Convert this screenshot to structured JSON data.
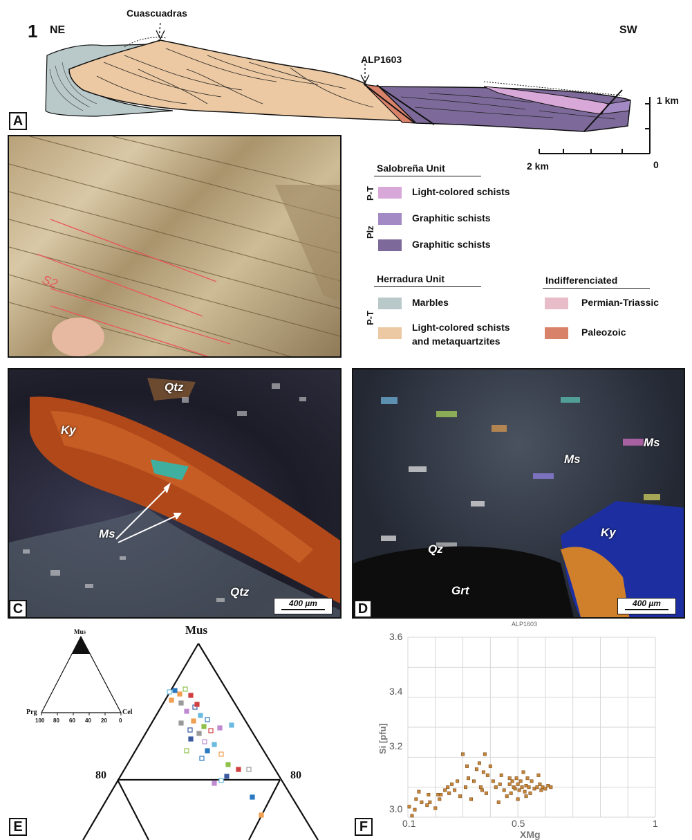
{
  "figure_number": "1",
  "panel_labels": {
    "a": "A",
    "c": "C",
    "d": "D",
    "e": "E",
    "f": "F"
  },
  "cross_section": {
    "left_direction": "NE",
    "right_direction": "SW",
    "peak_label": "Cuascuadras",
    "sample_label": "ALP1603",
    "vertical_scale_label": "1 km",
    "horizontal_scale_label": "2 km",
    "scale_zero": "0",
    "colors": {
      "marbles": "#b9c9c9",
      "herradura_schists": "#ecc9a2",
      "paleozoic": "#d9826a",
      "graphitic_plz": "#7d6a9b",
      "graphitic_pt": "#a38ac4",
      "light_salobrena": "#d8a8d8"
    }
  },
  "legend": {
    "salobrena": {
      "title": "Salobreña Unit",
      "items": [
        {
          "age": "P-T",
          "label": "Light-colored schists",
          "color": "#d8a8d8"
        },
        {
          "age": "Plz",
          "label": "Graphitic schists",
          "color": "#a38ac4"
        },
        {
          "age": "",
          "label": "Graphitic schists",
          "color": "#7d6a9b"
        }
      ]
    },
    "herradura": {
      "title": "Herradura Unit",
      "age": "P-T",
      "items": [
        {
          "label": "Marbles",
          "color": "#b9c9c9"
        },
        {
          "label_line1": "Light-colored schists",
          "label_line2": "and metaquartzites",
          "color": "#ecc9a2"
        }
      ]
    },
    "indiff": {
      "title": "Indifferenciated",
      "items": [
        {
          "label": "Permian-Triassic",
          "color": "#e8bcc9"
        },
        {
          "label": "Paleozoic",
          "color": "#d9826a"
        }
      ]
    }
  },
  "photo_b": {
    "annotation": "S2"
  },
  "micro_c": {
    "labels": [
      "Qtz",
      "Ky",
      "Ms",
      "Qtz"
    ],
    "scale": "400 µm"
  },
  "micro_d": {
    "labels": [
      "Ms",
      "Ms",
      "Ky",
      "Qz",
      "Grt"
    ],
    "scale": "400 µm"
  },
  "ternary": {
    "apex": "Mus",
    "inset_apex": "Mus",
    "inset_left": "Prg",
    "inset_right": "Cel",
    "inset_ticks": [
      "100",
      "80",
      "60",
      "40",
      "20",
      "0"
    ],
    "left_80": "80",
    "right_80": "80"
  },
  "chart_data": {
    "type": "scatter",
    "title": "ALP1603",
    "xlabel": "XMg",
    "ylabel": "Si [pfu]",
    "x_scale": "log",
    "xlim": [
      0.1,
      1
    ],
    "ylim": [
      3.0,
      3.6
    ],
    "x_tick_labels": [
      "0.1",
      "0.5",
      "1"
    ],
    "y_tick_labels": [
      "3.0",
      "3.2",
      "3.4",
      "3.6"
    ],
    "grid": true,
    "marker_color": "#c8873a",
    "points": [
      [
        0.105,
        3.035
      ],
      [
        0.115,
        3.005
      ],
      [
        0.125,
        3.025
      ],
      [
        0.13,
        3.06
      ],
      [
        0.14,
        3.085
      ],
      [
        0.15,
        3.05
      ],
      [
        0.17,
        3.04
      ],
      [
        0.175,
        3.075
      ],
      [
        0.18,
        3.05
      ],
      [
        0.2,
        3.03
      ],
      [
        0.21,
        3.075
      ],
      [
        0.215,
        3.06
      ],
      [
        0.22,
        3.075
      ],
      [
        0.235,
        3.09
      ],
      [
        0.245,
        3.1
      ],
      [
        0.25,
        3.08
      ],
      [
        0.26,
        3.11
      ],
      [
        0.27,
        3.09
      ],
      [
        0.28,
        3.12
      ],
      [
        0.29,
        3.07
      ],
      [
        0.3,
        3.21
      ],
      [
        0.31,
        3.1
      ],
      [
        0.315,
        3.17
      ],
      [
        0.32,
        3.13
      ],
      [
        0.33,
        3.06
      ],
      [
        0.34,
        3.12
      ],
      [
        0.35,
        3.16
      ],
      [
        0.36,
        3.18
      ],
      [
        0.365,
        3.1
      ],
      [
        0.37,
        3.09
      ],
      [
        0.375,
        3.15
      ],
      [
        0.38,
        3.21
      ],
      [
        0.385,
        3.08
      ],
      [
        0.39,
        3.14
      ],
      [
        0.4,
        3.17
      ],
      [
        0.41,
        3.12
      ],
      [
        0.42,
        3.1
      ],
      [
        0.43,
        3.05
      ],
      [
        0.435,
        3.11
      ],
      [
        0.44,
        3.14
      ],
      [
        0.45,
        3.09
      ],
      [
        0.46,
        3.07
      ],
      [
        0.47,
        3.11
      ],
      [
        0.475,
        3.08
      ],
      [
        0.48,
        3.12
      ],
      [
        0.485,
        3.1
      ],
      [
        0.49,
        3.095
      ],
      [
        0.495,
        3.13
      ],
      [
        0.5,
        3.11
      ],
      [
        0.505,
        3.09
      ],
      [
        0.51,
        3.12
      ],
      [
        0.515,
        3.1
      ],
      [
        0.52,
        3.15
      ],
      [
        0.525,
        3.085
      ],
      [
        0.53,
        3.105
      ],
      [
        0.535,
        3.13
      ],
      [
        0.54,
        3.1
      ],
      [
        0.545,
        3.08
      ],
      [
        0.55,
        3.12
      ],
      [
        0.56,
        3.095
      ],
      [
        0.57,
        3.1
      ],
      [
        0.575,
        3.14
      ],
      [
        0.58,
        3.11
      ],
      [
        0.585,
        3.09
      ],
      [
        0.59,
        3.1
      ],
      [
        0.6,
        3.095
      ],
      [
        0.61,
        3.105
      ],
      [
        0.62,
        3.1
      ],
      [
        0.5,
        3.06
      ],
      [
        0.47,
        3.13
      ],
      [
        0.53,
        3.07
      ]
    ]
  }
}
